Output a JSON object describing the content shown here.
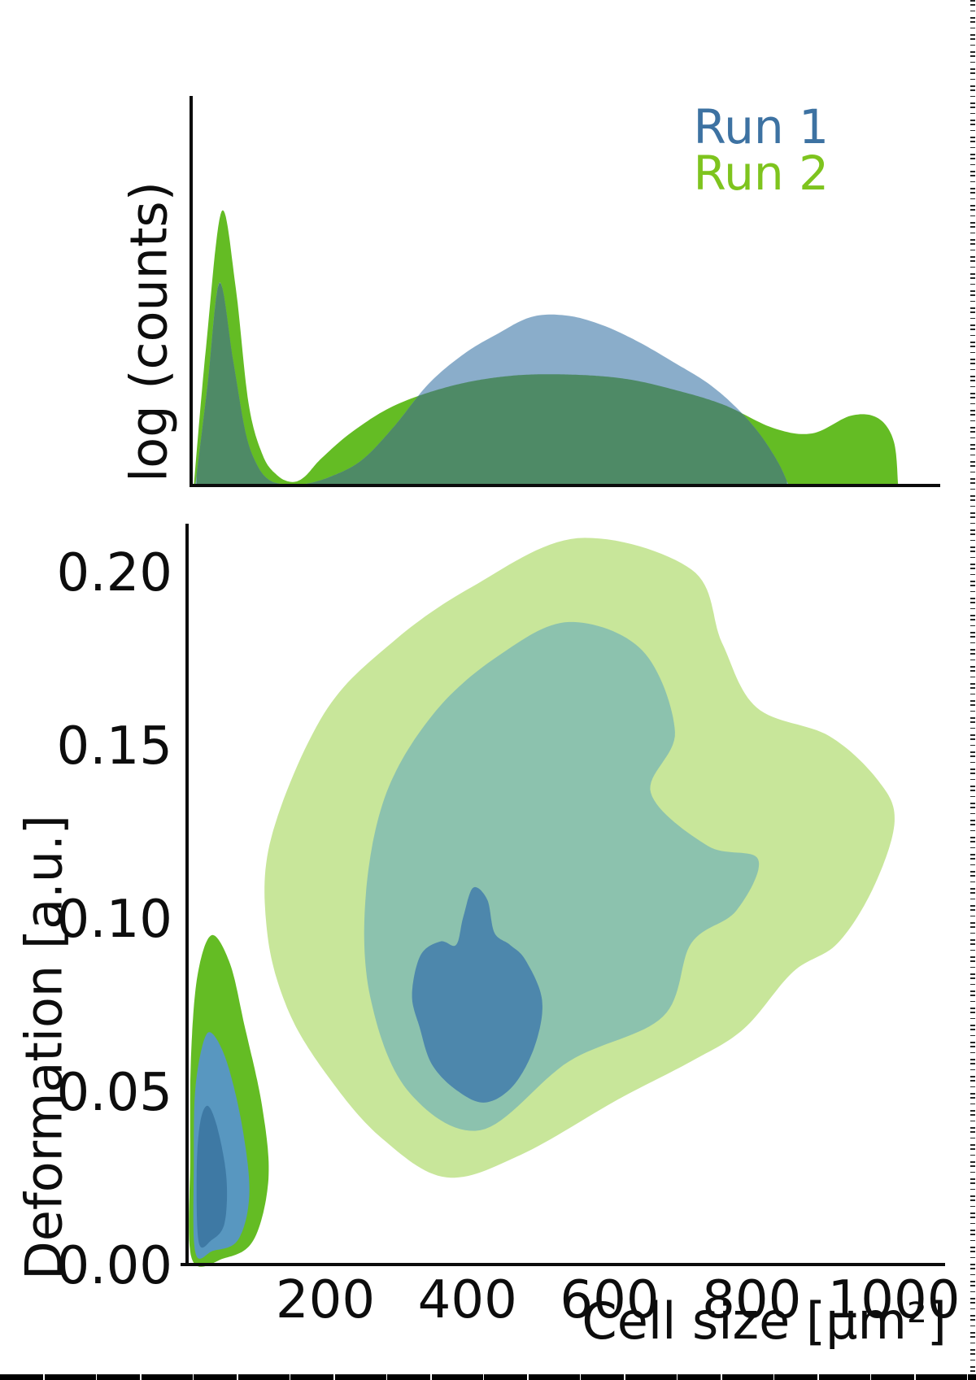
{
  "figure": {
    "legend": {
      "items": [
        {
          "label": "Run 1",
          "color": "#3d72a2"
        },
        {
          "label": "Run 2",
          "color": "#7ec41e"
        }
      ]
    },
    "top_panel": {
      "ylabel": "log (counts)"
    },
    "bottom_panel": {
      "ylabel": "Deformation [a.u.]",
      "xlabel": "Cell size [μm²]",
      "xtick_labels": [
        "200",
        "400",
        "600",
        "800",
        "1000"
      ],
      "ytick_labels": [
        "0.00",
        "0.05",
        "0.10",
        "0.15",
        "0.20"
      ]
    }
  },
  "colors": {
    "background": "#ffffff",
    "axis": "#0c0c0c",
    "run1_legend_text": "#3d72a2",
    "run2_legend_text": "#7ec41e",
    "run1_kde_fill": "#8aadca",
    "run2_kde_fill": "#64bc24",
    "kde_overlap_fill": "#4e8a66",
    "run2_contour_outer": "#c8e69a",
    "run1_contour_outer": "#8cc2ae",
    "run1_contour_inner": "#4d87ac",
    "run2_contour_inner_debris": "#64bc24",
    "run1_contour_outer_debris": "#5897c0",
    "run1_contour_inner_debris": "#3e79a4"
  },
  "chart_data": [
    {
      "type": "area",
      "panel": "top",
      "title": "",
      "ylabel": "log (counts)",
      "xlabel": "",
      "x_range": [
        0,
        1070
      ],
      "y_range": [
        0,
        1
      ],
      "grid": false,
      "legend_position": "upper right",
      "overlap_fill_color": "#4e8a66",
      "series": [
        {
          "name": "Run 1",
          "fill_color": "#8aadca",
          "points": [
            [
              17,
              0
            ],
            [
              34,
              0.36
            ],
            [
              51,
              0.74
            ],
            [
              70,
              0.46
            ],
            [
              88,
              0.19
            ],
            [
              104,
              0.075
            ],
            [
              120,
              0.022
            ],
            [
              140,
              0.005
            ],
            [
              168,
              0.004
            ],
            [
              205,
              0.03
            ],
            [
              250,
              0.09
            ],
            [
              295,
              0.21
            ],
            [
              345,
              0.37
            ],
            [
              395,
              0.48
            ],
            [
              440,
              0.55
            ],
            [
              490,
              0.615
            ],
            [
              540,
              0.62
            ],
            [
              590,
              0.585
            ],
            [
              640,
              0.525
            ],
            [
              690,
              0.45
            ],
            [
              740,
              0.37
            ],
            [
              780,
              0.28
            ],
            [
              812,
              0.185
            ],
            [
              838,
              0.08
            ],
            [
              852,
              0
            ]
          ]
        },
        {
          "name": "Run 2",
          "fill_color": "#64bc24",
          "points": [
            [
              15,
              0
            ],
            [
              32,
              0.5
            ],
            [
              54,
              1.0
            ],
            [
              74,
              0.72
            ],
            [
              92,
              0.3
            ],
            [
              112,
              0.11
            ],
            [
              132,
              0.038
            ],
            [
              152,
              0.013
            ],
            [
              170,
              0.03
            ],
            [
              195,
              0.1
            ],
            [
              240,
              0.2
            ],
            [
              300,
              0.295
            ],
            [
              380,
              0.365
            ],
            [
              460,
              0.4
            ],
            [
              540,
              0.405
            ],
            [
              620,
              0.39
            ],
            [
              690,
              0.35
            ],
            [
              760,
              0.295
            ],
            [
              830,
              0.21
            ],
            [
              885,
              0.19
            ],
            [
              940,
              0.255
            ],
            [
              978,
              0.245
            ],
            [
              1000,
              0.16
            ],
            [
              1006,
              0
            ]
          ]
        }
      ],
      "description": "Smoothed density (KDE) of cell size for two runs; both show a sharp debris peak near 50 um2 and a broad population centered near 500 um2; Run 2 extends beyond 1000 um2."
    },
    {
      "type": "heatmap",
      "style": "filled_kde_contours",
      "panel": "bottom",
      "xlabel": "Cell size [μm²]",
      "ylabel": "Deformation [a.u.]",
      "xlim": [
        0,
        1070
      ],
      "ylim": [
        0,
        0.2
      ],
      "xticks": [
        200,
        400,
        600,
        800,
        1000
      ],
      "yticks": [
        0,
        0.05,
        0.1,
        0.15,
        0.2
      ],
      "grid": false,
      "contours": [
        {
          "series": "Run 2",
          "level": "outer",
          "fill_color": "#c8e69a",
          "polygon": [
            [
              555,
              0.2099
            ],
            [
              715,
              0.2009
            ],
            [
              758,
              0.1798
            ],
            [
              807,
              0.161
            ],
            [
              909,
              0.1528
            ],
            [
              978,
              0.1399
            ],
            [
              1001,
              0.1282
            ],
            [
              972,
              0.1094
            ],
            [
              921,
              0.093
            ],
            [
              858,
              0.0847
            ],
            [
              789,
              0.0683
            ],
            [
              715,
              0.0589
            ],
            [
              612,
              0.0479
            ],
            [
              475,
              0.0319
            ],
            [
              370,
              0.0254
            ],
            [
              280,
              0.0366
            ],
            [
              209,
              0.0531
            ],
            [
              149,
              0.073
            ],
            [
              118,
              0.0965
            ],
            [
              124,
              0.1235
            ],
            [
              198,
              0.1592
            ],
            [
              294,
              0.1798
            ],
            [
              406,
              0.1958
            ]
          ]
        },
        {
          "series": "Run 1",
          "level": "outer",
          "fill_color": "#8cc2ae",
          "polygon": [
            [
              543,
              0.1857
            ],
            [
              646,
              0.1775
            ],
            [
              692,
              0.154
            ],
            [
              658,
              0.1364
            ],
            [
              738,
              0.1211
            ],
            [
              809,
              0.1172
            ],
            [
              778,
              0.1023
            ],
            [
              715,
              0.093
            ],
            [
              675,
              0.0718
            ],
            [
              543,
              0.0589
            ],
            [
              418,
              0.039
            ],
            [
              315,
              0.0507
            ],
            [
              263,
              0.0777
            ],
            [
              257,
              0.107
            ],
            [
              286,
              0.1364
            ],
            [
              355,
              0.1599
            ],
            [
              446,
              0.1763
            ]
          ]
        },
        {
          "series": "Run 1",
          "level": "inner",
          "fill_color": "#4d87ac",
          "polygon": [
            [
              408,
              0.109
            ],
            [
              428,
              0.1055
            ],
            [
              438,
              0.096
            ],
            [
              460,
              0.0925
            ],
            [
              482,
              0.088
            ],
            [
              505,
              0.0765
            ],
            [
              495,
              0.0635
            ],
            [
              465,
              0.052
            ],
            [
              425,
              0.047
            ],
            [
              385,
              0.0505
            ],
            [
              350,
              0.058
            ],
            [
              333,
              0.0685
            ],
            [
              322,
              0.078
            ],
            [
              334,
              0.0895
            ],
            [
              362,
              0.0935
            ],
            [
              384,
              0.0925
            ],
            [
              394,
              0.1005
            ]
          ]
        },
        {
          "series": "Run 2",
          "level": "inner (debris mode)",
          "fill_color": "#64bc24",
          "polygon": [
            [
              12,
              0.002
            ],
            [
              10,
              0.032
            ],
            [
              11,
              0.06
            ],
            [
              20,
              0.0835
            ],
            [
              40,
              0.0953
            ],
            [
              66,
              0.087
            ],
            [
              86,
              0.0695
            ],
            [
              111,
              0.046
            ],
            [
              120,
              0.025
            ],
            [
              99,
              0.0073
            ],
            [
              57,
              0.002
            ]
          ]
        },
        {
          "series": "Run 1",
          "level": "outer (debris mode)",
          "fill_color": "#5897c0",
          "polygon": [
            [
              17,
              0.0038
            ],
            [
              15,
              0.0296
            ],
            [
              17,
              0.0507
            ],
            [
              29,
              0.0648
            ],
            [
              42,
              0.0667
            ],
            [
              63,
              0.0577
            ],
            [
              84,
              0.039
            ],
            [
              93,
              0.0202
            ],
            [
              77,
              0.0073
            ],
            [
              42,
              0.0042
            ]
          ]
        },
        {
          "series": "Run 1",
          "level": "inner (debris mode)",
          "fill_color": "#3e79a4",
          "polygon": [
            [
              22,
              0.0066
            ],
            [
              19,
              0.0272
            ],
            [
              24,
              0.0413
            ],
            [
              35,
              0.046
            ],
            [
              49,
              0.039
            ],
            [
              61,
              0.0249
            ],
            [
              58,
              0.012
            ],
            [
              40,
              0.0073
            ]
          ]
        }
      ],
      "modes": [
        {
          "series": "Run 1",
          "cell_size": 420,
          "deformation": 0.08,
          "note": "main population (dark blue inner contour)"
        },
        {
          "series": "Run 1",
          "cell_size": 35,
          "deformation": 0.035,
          "note": "debris / small events near origin"
        },
        {
          "series": "Run 2",
          "cell_size": 550,
          "deformation": 0.12,
          "note": "broad population (light green outer contour)"
        },
        {
          "series": "Run 2",
          "cell_size": 45,
          "deformation": 0.05,
          "note": "debris / small events near origin"
        }
      ]
    }
  ]
}
